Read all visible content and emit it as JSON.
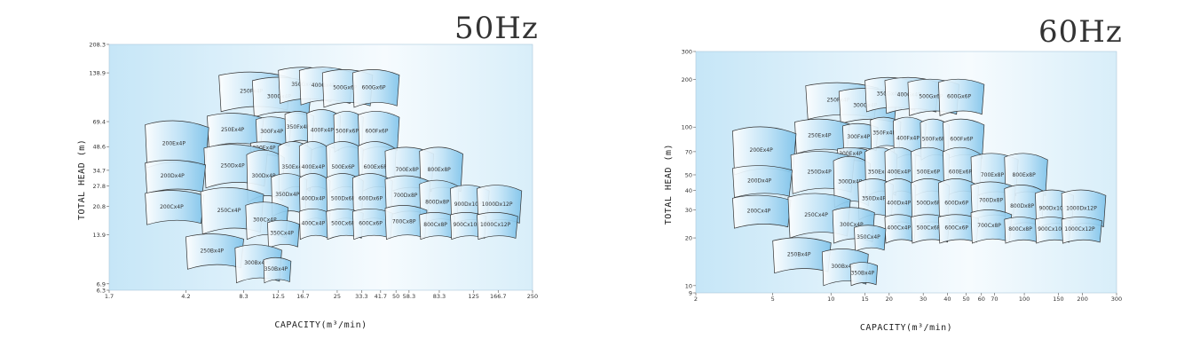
{
  "panels": {
    "p50": {
      "title": "50Hz"
    },
    "p60": {
      "title": "60Hz"
    }
  },
  "chart_data": [
    {
      "type": "area",
      "title": "50Hz",
      "xlabel": "CAPACITY(m³/min)",
      "ylabel": "TOTAL HEAD (m)",
      "xscale": "log",
      "yscale": "log",
      "xlim": [
        1.7,
        250
      ],
      "ylim": [
        6.3,
        208.3
      ],
      "xticks": [
        "1.7",
        "4.2",
        "8.3",
        "12.5",
        "16.7",
        "25",
        "33.3",
        "41.7",
        "50",
        "58.3",
        "83.3",
        "125",
        "166.7",
        "250"
      ],
      "xtick_values": [
        1.7,
        4.2,
        8.3,
        12.5,
        16.7,
        25,
        33.3,
        41.7,
        50,
        58.3,
        83.3,
        125,
        166.7,
        250
      ],
      "yticks": [
        "6.3",
        "6.9",
        "13.9",
        "20.8",
        "27.8",
        "34.7",
        "48.6",
        "69.4",
        "138.9",
        "208.3"
      ],
      "ytick_values": [
        6.3,
        6.9,
        13.9,
        20.8,
        27.8,
        34.7,
        48.6,
        69.4,
        138.9,
        208.3
      ],
      "models": [
        {
          "name": "250Fx4P",
          "x": [
            6.2,
            14.5
          ],
          "y": [
            80,
            140
          ]
        },
        {
          "name": "300Gx4P",
          "x": [
            9.2,
            18.5
          ],
          "y": [
            74,
            130
          ]
        },
        {
          "name": "350Gx4P",
          "x": [
            12.5,
            24
          ],
          "y": [
            90,
            150
          ]
        },
        {
          "name": "400Gx4P",
          "x": [
            16,
            30
          ],
          "y": [
            88,
            150
          ]
        },
        {
          "name": "500Gx6P",
          "x": [
            21,
            38
          ],
          "y": [
            85,
            145
          ]
        },
        {
          "name": "600Gx6P",
          "x": [
            30,
            52
          ],
          "y": [
            85,
            145
          ]
        },
        {
          "name": "250Ex4P",
          "x": [
            5.4,
            10.5
          ],
          "y": [
            48,
            78
          ]
        },
        {
          "name": "300Fx4P",
          "x": [
            9.6,
            14.5
          ],
          "y": [
            48,
            74
          ]
        },
        {
          "name": "350Fx4P",
          "x": [
            13.5,
            19
          ],
          "y": [
            50,
            80
          ]
        },
        {
          "name": "400Fx4P",
          "x": [
            17.5,
            26
          ],
          "y": [
            45,
            82
          ]
        },
        {
          "name": "500Fx6P",
          "x": [
            24,
            34
          ],
          "y": [
            45,
            80
          ]
        },
        {
          "name": "600Fx6P",
          "x": [
            32,
            52
          ],
          "y": [
            45,
            80
          ]
        },
        {
          "name": "300Ex4P",
          "x": [
            9.0,
            12.8
          ],
          "y": [
            42,
            52
          ]
        },
        {
          "name": "200Ex4P",
          "x": [
            2.6,
            5.5
          ],
          "y": [
            36,
            70
          ]
        },
        {
          "name": "250Dx4P",
          "x": [
            5.2,
            11
          ],
          "y": [
            27,
            50
          ]
        },
        {
          "name": "300Dx4P",
          "x": [
            8.6,
            13.4
          ],
          "y": [
            22,
            46
          ]
        },
        {
          "name": "350Ex4P",
          "x": [
            12.5,
            18.5
          ],
          "y": [
            25,
            52
          ]
        },
        {
          "name": "400Ex4P",
          "x": [
            16,
            23
          ],
          "y": [
            25,
            52
          ]
        },
        {
          "name": "500Ex6P",
          "x": [
            22,
            34
          ],
          "y": [
            25,
            52
          ]
        },
        {
          "name": "600Ex6P",
          "x": [
            32,
            50
          ],
          "y": [
            25,
            52
          ]
        },
        {
          "name": "700Ex8P",
          "x": [
            44,
            78
          ],
          "y": [
            25,
            48
          ]
        },
        {
          "name": "800Ex8P",
          "x": [
            66,
            110
          ],
          "y": [
            25,
            48
          ]
        },
        {
          "name": "200Dx4P",
          "x": [
            2.6,
            5.3
          ],
          "y": [
            25,
            40
          ]
        },
        {
          "name": "350Dx4P",
          "x": [
            11.5,
            17.5
          ],
          "y": [
            18,
            33
          ]
        },
        {
          "name": "400Dx4P",
          "x": [
            16,
            23
          ],
          "y": [
            16,
            33
          ]
        },
        {
          "name": "500Dx6P",
          "x": [
            22,
            34
          ],
          "y": [
            16,
            33
          ]
        },
        {
          "name": "600Dx6P",
          "x": [
            30,
            48
          ],
          "y": [
            16,
            33
          ]
        },
        {
          "name": "700Dx8P",
          "x": [
            44,
            75
          ],
          "y": [
            18,
            32
          ]
        },
        {
          "name": "800Dx8P",
          "x": [
            66,
            105
          ],
          "y": [
            16,
            30
          ]
        },
        {
          "name": "900Dx10P",
          "x": [
            95,
            150
          ],
          "y": [
            16,
            28
          ]
        },
        {
          "name": "1000Dx12P",
          "x": [
            130,
            220
          ],
          "y": [
            16,
            28
          ]
        },
        {
          "name": "200Cx4P",
          "x": [
            2.6,
            5.2
          ],
          "y": [
            16,
            26
          ]
        },
        {
          "name": "250Cx4P",
          "x": [
            5.0,
            10.5
          ],
          "y": [
            14,
            27
          ]
        },
        {
          "name": "300Cx4P",
          "x": [
            8.5,
            14
          ],
          "y": [
            13,
            22
          ]
        },
        {
          "name": "400Cx4P",
          "x": [
            16,
            23
          ],
          "y": [
            13,
            20
          ]
        },
        {
          "name": "500Cx6P",
          "x": [
            22,
            34
          ],
          "y": [
            13,
            20
          ]
        },
        {
          "name": "600Cx6P",
          "x": [
            30,
            48
          ],
          "y": [
            13,
            20
          ]
        },
        {
          "name": "700Cx8P",
          "x": [
            44,
            72
          ],
          "y": [
            13,
            21
          ]
        },
        {
          "name": "800Cx8P",
          "x": [
            66,
            100
          ],
          "y": [
            13,
            19
          ]
        },
        {
          "name": "900Cx10P",
          "x": [
            95,
            145
          ],
          "y": [
            13,
            19
          ]
        },
        {
          "name": "1000Cx12P",
          "x": [
            130,
            210
          ],
          "y": [
            13,
            19
          ]
        },
        {
          "name": "350Cx4P",
          "x": [
            11,
            16
          ],
          "y": [
            11.5,
            17
          ]
        },
        {
          "name": "250Bx4P",
          "x": [
            4.2,
            8.3
          ],
          "y": [
            8.5,
            14
          ]
        },
        {
          "name": "300Bx4P",
          "x": [
            7.5,
            13
          ],
          "y": [
            7,
            12
          ]
        },
        {
          "name": "350Bx4P",
          "x": [
            10.5,
            14.5
          ],
          "y": [
            7,
            10
          ]
        }
      ]
    },
    {
      "type": "area",
      "title": "60Hz",
      "xlabel": "CAPACITY(m³/min)",
      "ylabel": "TOTAL HEAD (m)",
      "xscale": "log",
      "yscale": "log",
      "xlim": [
        2,
        300
      ],
      "ylim": [
        9,
        300
      ],
      "xticks": [
        "2",
        "5",
        "10",
        "15",
        "20",
        "30",
        "40",
        "50",
        "60",
        "70",
        "100",
        "150",
        "200",
        "300"
      ],
      "xtick_values": [
        2,
        5,
        10,
        15,
        20,
        30,
        40,
        50,
        60,
        70,
        100,
        150,
        200,
        300
      ],
      "yticks": [
        "9",
        "10",
        "20",
        "30",
        "40",
        "50",
        "70",
        "100",
        "200",
        "300"
      ],
      "ytick_values": [
        9,
        10,
        20,
        30,
        40,
        50,
        70,
        100,
        200,
        300
      ],
      "models": [
        {
          "name": "250Fx4P",
          "x": [
            7.4,
            17.5
          ],
          "y": [
            112,
            190
          ]
        },
        {
          "name": "300Gx4P",
          "x": [
            11,
            22
          ],
          "y": [
            105,
            175
          ]
        },
        {
          "name": "350Gx4P",
          "x": [
            15,
            28
          ],
          "y": [
            125,
            205
          ]
        },
        {
          "name": "400Gx4P",
          "x": [
            19,
            36
          ],
          "y": [
            122,
            205
          ]
        },
        {
          "name": "500Gx6P",
          "x": [
            25,
            46
          ],
          "y": [
            118,
            200
          ]
        },
        {
          "name": "600Gx6P",
          "x": [
            36,
            62
          ],
          "y": [
            118,
            200
          ]
        },
        {
          "name": "250Ex4P",
          "x": [
            6.5,
            12.5
          ],
          "y": [
            68,
            112
          ]
        },
        {
          "name": "300Fx4P",
          "x": [
            11.5,
            17.5
          ],
          "y": [
            70,
            105
          ]
        },
        {
          "name": "350Fx4P",
          "x": [
            16,
            23
          ],
          "y": [
            72,
            115
          ]
        },
        {
          "name": "400Fx4P",
          "x": [
            21,
            31
          ],
          "y": [
            62,
            115
          ]
        },
        {
          "name": "500Fx6P",
          "x": [
            29,
            41
          ],
          "y": [
            62,
            112
          ]
        },
        {
          "name": "600Fx6P",
          "x": [
            38,
            62
          ],
          "y": [
            62,
            112
          ]
        },
        {
          "name": "300Ex4P",
          "x": [
            10.8,
            15.3
          ],
          "y": [
            60,
            74
          ]
        },
        {
          "name": "200Ex4P",
          "x": [
            3.1,
            6.6
          ],
          "y": [
            50,
            100
          ]
        },
        {
          "name": "250Dx4P",
          "x": [
            6.2,
            13.2
          ],
          "y": [
            38,
            70
          ]
        },
        {
          "name": "300Dx4P",
          "x": [
            10.3,
            16
          ],
          "y": [
            31,
            65
          ]
        },
        {
          "name": "350Ex4P",
          "x": [
            15,
            22
          ],
          "y": [
            36,
            74
          ]
        },
        {
          "name": "400Ex4P",
          "x": [
            19,
            27.5
          ],
          "y": [
            36,
            74
          ]
        },
        {
          "name": "500Ex6P",
          "x": [
            26,
            41
          ],
          "y": [
            36,
            74
          ]
        },
        {
          "name": "600Ex6P",
          "x": [
            38,
            60
          ],
          "y": [
            36,
            74
          ]
        },
        {
          "name": "700Ex8P",
          "x": [
            53,
            93
          ],
          "y": [
            36,
            68
          ]
        },
        {
          "name": "800Ex8P",
          "x": [
            79,
            132
          ],
          "y": [
            36,
            68
          ]
        },
        {
          "name": "200Dx4P",
          "x": [
            3.1,
            6.3
          ],
          "y": [
            36,
            57
          ]
        },
        {
          "name": "350Dx4P",
          "x": [
            13.8,
            21
          ],
          "y": [
            26,
            47
          ]
        },
        {
          "name": "400Dx4P",
          "x": [
            19,
            27.5
          ],
          "y": [
            23,
            47
          ]
        },
        {
          "name": "500Dx6P",
          "x": [
            26,
            41
          ],
          "y": [
            23,
            47
          ]
        },
        {
          "name": "600Dx6P",
          "x": [
            36,
            58
          ],
          "y": [
            23,
            47
          ]
        },
        {
          "name": "700Dx8P",
          "x": [
            53,
            90
          ],
          "y": [
            26,
            45
          ]
        },
        {
          "name": "800Dx8P",
          "x": [
            79,
            126
          ],
          "y": [
            23,
            43
          ]
        },
        {
          "name": "900Dx10P",
          "x": [
            114,
            180
          ],
          "y": [
            23,
            40
          ]
        },
        {
          "name": "1000Dx12P",
          "x": [
            156,
            264
          ],
          "y": [
            23,
            40
          ]
        },
        {
          "name": "200Cx4P",
          "x": [
            3.1,
            6.2
          ],
          "y": [
            23,
            37
          ]
        },
        {
          "name": "250Cx4P",
          "x": [
            6,
            12.6
          ],
          "y": [
            20,
            38
          ]
        },
        {
          "name": "300Cx4P",
          "x": [
            10.2,
            16.8
          ],
          "y": [
            18.5,
            31
          ]
        },
        {
          "name": "400Cx4P",
          "x": [
            19,
            27.5
          ],
          "y": [
            18.5,
            28
          ]
        },
        {
          "name": "500Cx6P",
          "x": [
            26,
            41
          ],
          "y": [
            18.5,
            28
          ]
        },
        {
          "name": "600Cx6P",
          "x": [
            36,
            58
          ],
          "y": [
            18.5,
            28
          ]
        },
        {
          "name": "700Cx8P",
          "x": [
            53,
            86
          ],
          "y": [
            18.5,
            30
          ]
        },
        {
          "name": "800Cx8P",
          "x": [
            79,
            120
          ],
          "y": [
            18.5,
            27
          ]
        },
        {
          "name": "900Cx10P",
          "x": [
            114,
            174
          ],
          "y": [
            18.5,
            27
          ]
        },
        {
          "name": "1000Cx12P",
          "x": [
            156,
            252
          ],
          "y": [
            18.5,
            27
          ]
        },
        {
          "name": "350Cx4P",
          "x": [
            13.2,
            19.2
          ],
          "y": [
            16.5,
            24
          ]
        },
        {
          "name": "250Bx4P",
          "x": [
            5,
            10
          ],
          "y": [
            12,
            20
          ]
        },
        {
          "name": "300Bx4P",
          "x": [
            9,
            15.6
          ],
          "y": [
            10,
            17
          ]
        },
        {
          "name": "350Bx4P",
          "x": [
            12.6,
            17.4
          ],
          "y": [
            10,
            14
          ]
        }
      ]
    }
  ]
}
